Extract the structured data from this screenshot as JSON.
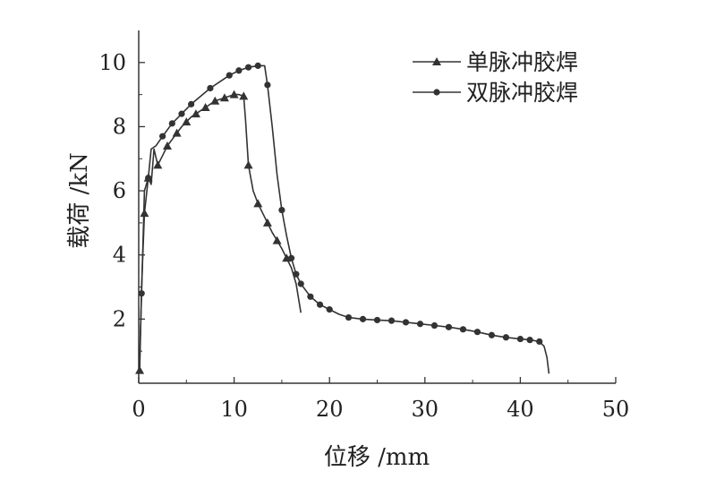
{
  "chart_data": {
    "type": "line",
    "title": "",
    "xlabel": "位移 /mm",
    "ylabel": "载荷 /kN",
    "xlim": [
      0,
      50
    ],
    "ylim": [
      0,
      11
    ],
    "xticks": [
      0,
      10,
      20,
      30,
      40,
      50
    ],
    "yticks": [
      2,
      4,
      6,
      8,
      10
    ],
    "grid": false,
    "legend_position": "top-right",
    "colors": {
      "line": "#333333",
      "axis": "#333333",
      "text": "#222222"
    },
    "series": [
      {
        "name": "单脉冲胶焊",
        "marker": "triangle",
        "x": [
          0.1,
          0.3,
          0.6,
          1.0,
          1.3,
          1.6,
          2.0,
          2.5,
          3.0,
          3.5,
          4.0,
          4.5,
          5.0,
          5.5,
          6.0,
          6.5,
          7.0,
          7.5,
          8.0,
          8.5,
          9.0,
          9.5,
          10.0,
          10.5,
          11.0,
          11.2,
          11.5,
          12.0,
          12.5,
          13.0,
          13.5,
          14.0,
          14.5,
          15.0,
          15.5,
          16.0,
          16.5,
          17.0
        ],
        "y": [
          0.4,
          3.0,
          5.3,
          6.4,
          6.2,
          7.3,
          6.8,
          7.1,
          7.4,
          7.6,
          7.8,
          8.0,
          8.15,
          8.3,
          8.4,
          8.5,
          8.6,
          8.7,
          8.8,
          8.85,
          8.9,
          8.95,
          9.0,
          9.0,
          8.95,
          8.2,
          6.8,
          6.0,
          5.6,
          5.3,
          5.0,
          4.7,
          4.45,
          4.2,
          3.9,
          3.6,
          3.1,
          2.2
        ],
        "markers_at": [
          0.1,
          0.6,
          1.0,
          2.0,
          3.0,
          4.0,
          5.0,
          6.0,
          7.0,
          8.0,
          9.0,
          10.0,
          11.0,
          11.5,
          12.5,
          13.5,
          14.5,
          15.5
        ]
      },
      {
        "name": "双脉冲胶焊",
        "marker": "circle",
        "x": [
          0.1,
          0.3,
          0.6,
          1.0,
          1.3,
          1.8,
          2.5,
          3.5,
          4.5,
          5.5,
          6.5,
          7.5,
          8.5,
          9.5,
          10.5,
          11.5,
          12.5,
          13.2,
          13.5,
          14.0,
          14.5,
          15.0,
          15.5,
          16.0,
          16.5,
          17.0,
          18.0,
          19.0,
          20.0,
          21.0,
          22.0,
          23.5,
          25.0,
          26.5,
          28.0,
          29.5,
          31.0,
          32.5,
          34.0,
          35.5,
          37.0,
          38.5,
          40.0,
          41.0,
          42.0,
          42.5,
          42.8,
          43.0
        ],
        "y": [
          0.8,
          2.8,
          6.0,
          6.4,
          7.3,
          7.4,
          7.7,
          8.1,
          8.4,
          8.7,
          8.95,
          9.2,
          9.4,
          9.6,
          9.75,
          9.85,
          9.9,
          9.9,
          9.3,
          8.0,
          6.5,
          5.4,
          4.6,
          3.9,
          3.4,
          3.1,
          2.7,
          2.45,
          2.3,
          2.15,
          2.05,
          2.0,
          1.97,
          1.95,
          1.9,
          1.85,
          1.8,
          1.75,
          1.68,
          1.6,
          1.5,
          1.43,
          1.38,
          1.35,
          1.3,
          1.15,
          0.8,
          0.3
        ],
        "markers_at": [
          0.3,
          1.0,
          2.5,
          3.5,
          4.5,
          5.5,
          7.5,
          9.5,
          10.5,
          11.5,
          12.5,
          13.5,
          15.0,
          16.0,
          16.5,
          17.0,
          18.0,
          19.0,
          20.0,
          22.0,
          23.5,
          25.0,
          26.5,
          28.0,
          29.5,
          31.0,
          32.5,
          34.0,
          35.5,
          37.0,
          38.5,
          40.0,
          41.0,
          42.0
        ]
      }
    ]
  }
}
